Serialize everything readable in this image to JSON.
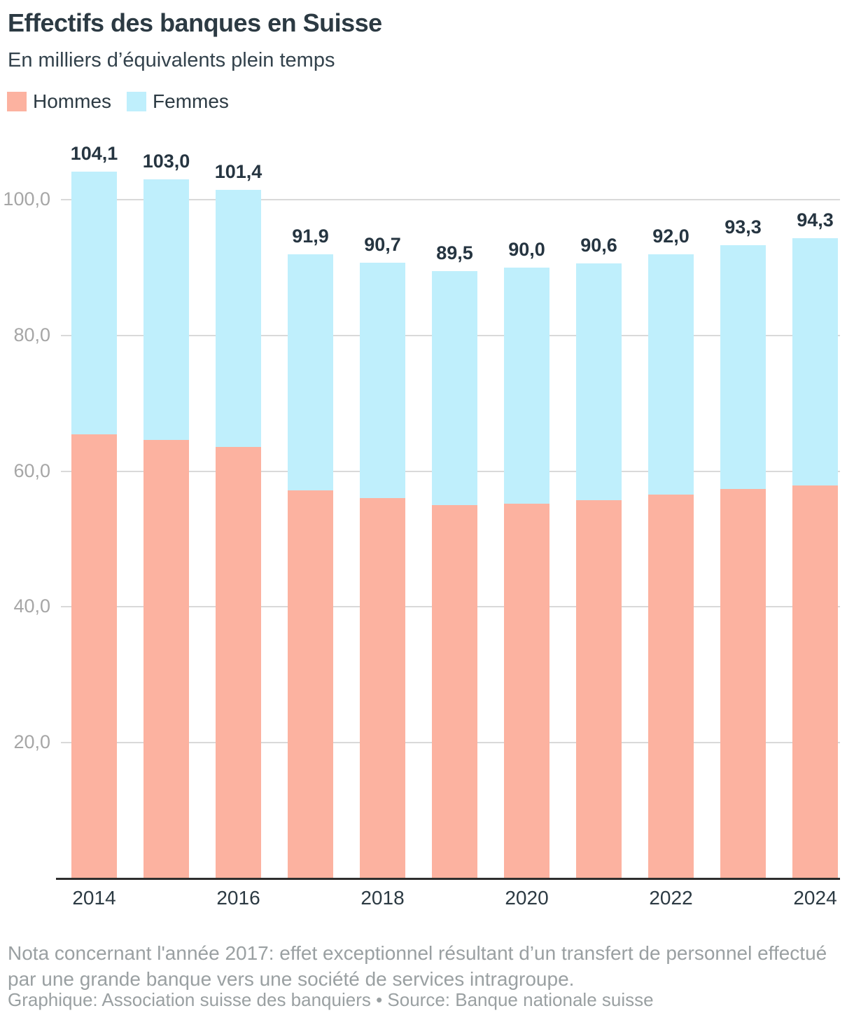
{
  "header": {
    "title": "Effectifs des banques en Suisse",
    "subtitle": "En milliers d’équivalents plein temps"
  },
  "legend": [
    {
      "label": "Hommes",
      "color": "#fcb2a0"
    },
    {
      "label": "Femmes",
      "color": "#bfeffc"
    }
  ],
  "chart_data": {
    "type": "bar",
    "stacked": true,
    "title": "Effectifs des banques en Suisse",
    "subtitle": "En milliers d’équivalents plein temps",
    "xlabel": "",
    "ylabel": "",
    "ylim": [
      0,
      110
    ],
    "grid": true,
    "legend_position": "top",
    "categories": [
      "2014",
      "2015",
      "2016",
      "2017",
      "2018",
      "2019",
      "2020",
      "2021",
      "2022",
      "2023",
      "2024"
    ],
    "series": [
      {
        "name": "Hommes",
        "color": "#fcb2a0",
        "values": [
          65.4,
          64.6,
          63.6,
          57.2,
          56.0,
          55.0,
          55.2,
          55.7,
          56.6,
          57.4,
          57.9
        ]
      },
      {
        "name": "Femmes",
        "color": "#bfeffc",
        "values": [
          38.7,
          38.4,
          37.8,
          34.7,
          34.7,
          34.5,
          34.8,
          34.9,
          35.4,
          35.9,
          36.4
        ]
      }
    ],
    "totals": [
      104.1,
      103.0,
      101.4,
      91.9,
      90.7,
      89.5,
      90.0,
      90.6,
      92.0,
      93.3,
      94.3
    ],
    "total_labels": [
      "104,1",
      "103,0",
      "101,4",
      "91,9",
      "90,7",
      "89,5",
      "90,0",
      "90,6",
      "92,0",
      "93,3",
      "94,3"
    ],
    "y_ticks": [
      {
        "value": 20,
        "label": "20,0"
      },
      {
        "value": 40,
        "label": "40,0"
      },
      {
        "value": 60,
        "label": "60,0"
      },
      {
        "value": 80,
        "label": "80,0"
      },
      {
        "value": 100,
        "label": "100,0"
      }
    ],
    "x_tick_labels": [
      "2014",
      "2016",
      "2018",
      "2020",
      "2022",
      "2024"
    ]
  },
  "footer": {
    "note": "Nota concernant l'année 2017: effet exceptionnel résultant d’un transfert de personnel effectué par une grande banque vers une société de services intragroupe.",
    "credit": "Graphique: Association suisse des banquiers • Source: Banque nationale suisse"
  }
}
